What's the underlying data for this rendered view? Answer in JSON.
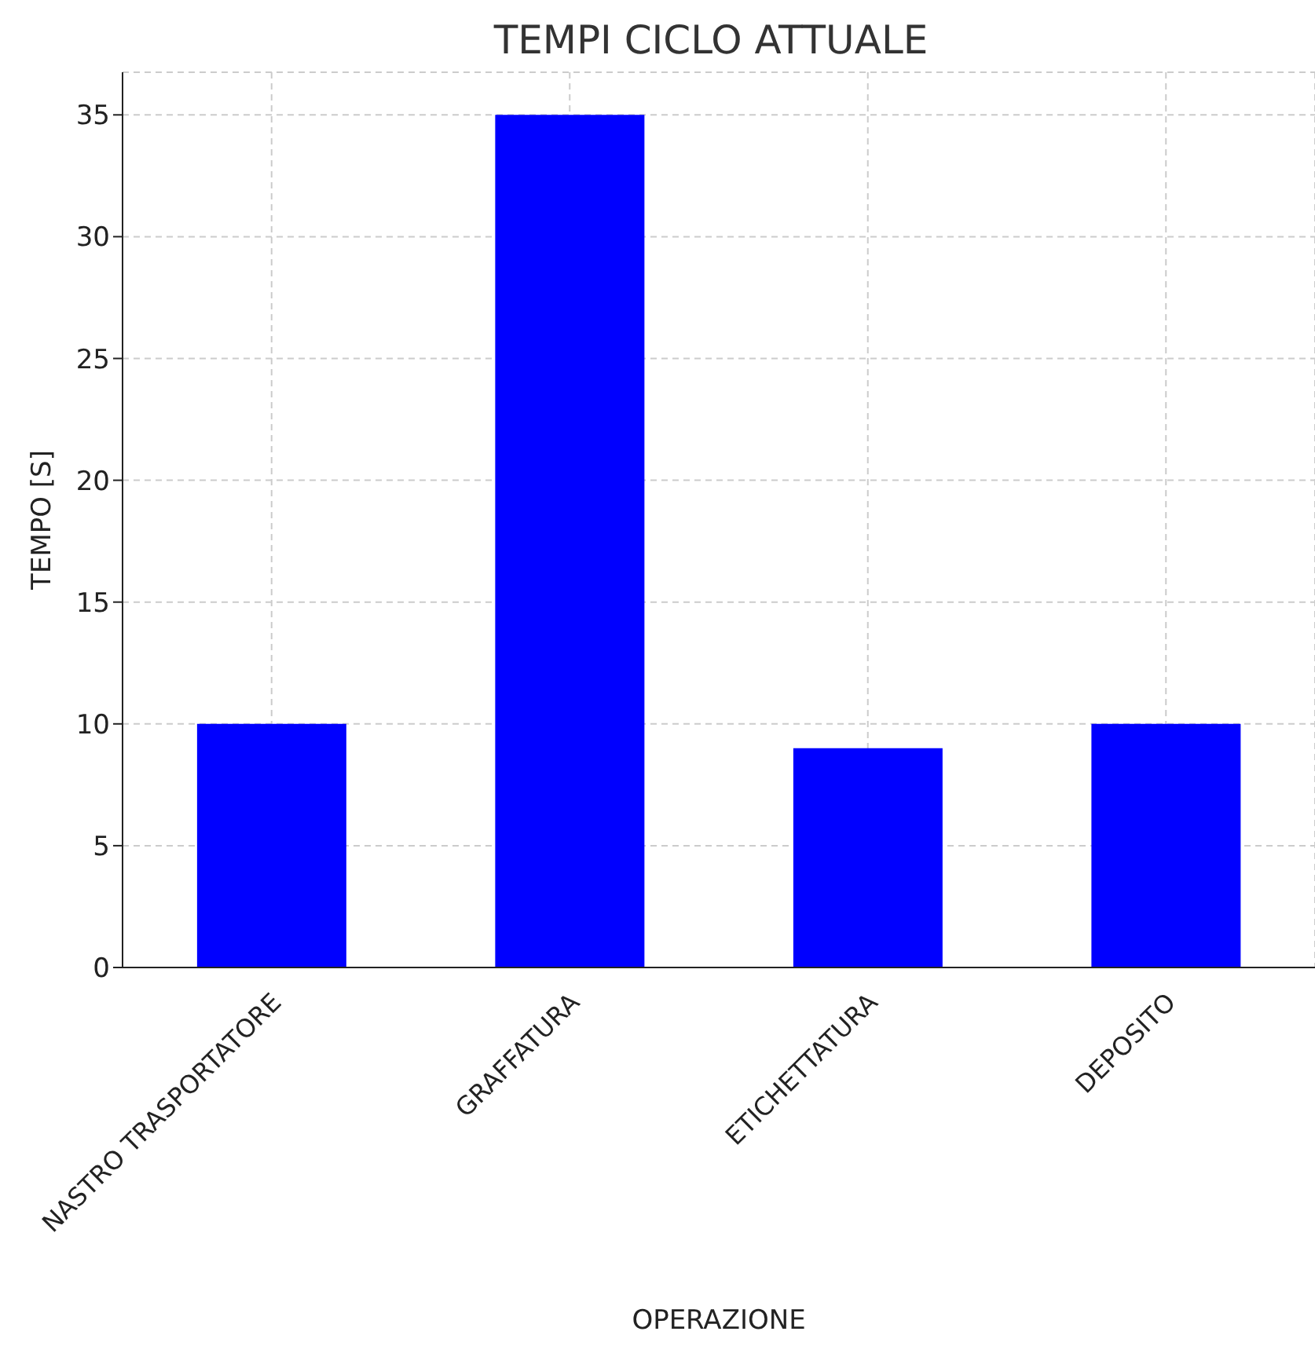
{
  "chart_data": {
    "type": "bar",
    "title": "TEMPI CICLO ATTUALE",
    "xlabel": "OPERAZIONE",
    "ylabel": "TEMPO [S]",
    "categories": [
      "NASTRO TRASPORTATORE",
      "GRAFFATURA",
      "ETICHETTATURA",
      "DEPOSITO"
    ],
    "values": [
      10,
      35,
      9,
      10
    ],
    "color": "#0000ff",
    "ylim": [
      0,
      36.75
    ],
    "yticks": [
      0,
      5,
      10,
      15,
      20,
      25,
      30,
      35
    ],
    "grid": true
  }
}
